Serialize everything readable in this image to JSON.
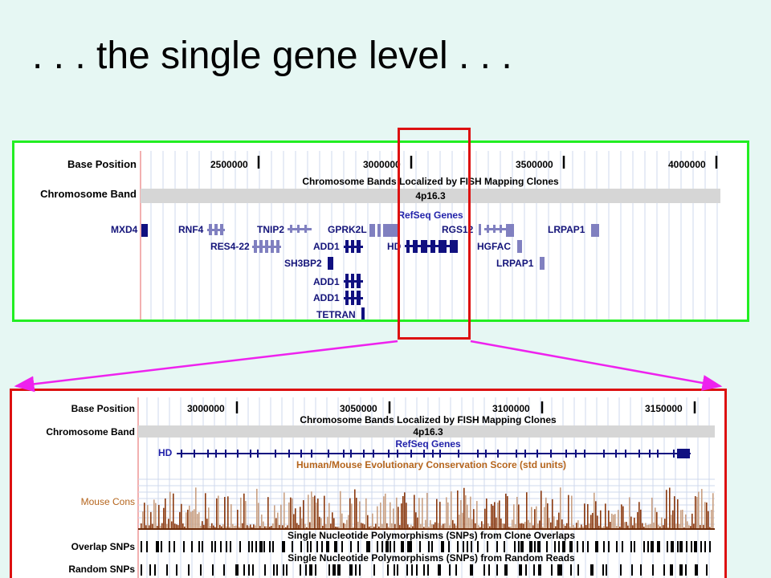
{
  "slide": {
    "title": ". . . the single gene level . . .",
    "colors": {
      "background": "#e6f7f3",
      "overview_border": "#22ee22",
      "zoom_border": "#dd1111",
      "connector": "#ee22ee",
      "gene_dark": "#101080",
      "gene_light": "#8080c0",
      "conservation": "#8b3a0f"
    }
  },
  "overview_panel": {
    "labels": {
      "base_position": "Base Position",
      "chromosome_band": "Chromosome Band",
      "fish_track": "Chromosome Bands Localized by FISH Mapping Clones",
      "band_name": "4p16.3",
      "refseq_track": "RefSeq Genes"
    },
    "ruler_ticks": [
      "2500000",
      "3000000",
      "3500000",
      "4000000"
    ],
    "genes": [
      "MXD4",
      "RNF4",
      "TNIP2",
      "GPRK2L",
      "RGS12",
      "LRPAP1",
      "RES4-22",
      "ADD1",
      "HD",
      "HGFAC",
      "SH3BP2",
      "LRPAP1",
      "ADD1",
      "ADD1",
      "TETRAN"
    ]
  },
  "zoom_panel": {
    "labels": {
      "base_position": "Base Position",
      "chromosome_band": "Chromosome Band",
      "fish_track": "Chromosome Bands Localized by FISH Mapping Clones",
      "band_name": "4p16.3",
      "refseq_track": "RefSeq Genes",
      "gene": "HD",
      "conservation_track": "Human/Mouse Evolutionary Conservation Score (std units)",
      "mouse_cons": "Mouse Cons",
      "overlap_track": "Single Nucleotide Polymorphisms (SNPs) from Clone Overlaps",
      "overlap_snps": "Overlap SNPs",
      "random_track": "Single Nucleotide Polymorphisms (SNPs) from Random Reads",
      "random_snps": "Random SNPs"
    },
    "ruler_ticks": [
      "3000000",
      "3050000",
      "3100000",
      "3150000"
    ]
  }
}
